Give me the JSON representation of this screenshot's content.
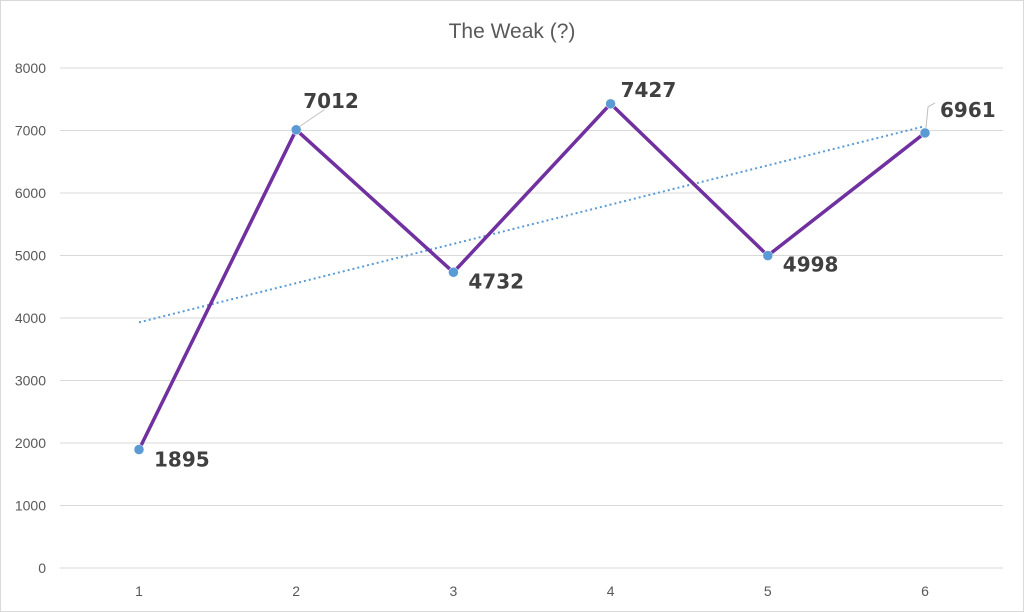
{
  "chart_data": {
    "type": "line",
    "title": "The Weak (?)",
    "xlabel": "",
    "ylabel": "",
    "categories": [
      "1",
      "2",
      "3",
      "4",
      "5",
      "6"
    ],
    "ylim": [
      0,
      8000
    ],
    "y_ticks": [
      "0",
      "1000",
      "2000",
      "3000",
      "4000",
      "5000",
      "6000",
      "7000",
      "8000"
    ],
    "grid": "horizontal",
    "legend": "none",
    "series": [
      {
        "values": [
          1895,
          7012,
          4732,
          7427,
          4998,
          6961
        ],
        "data_labels": [
          "1895",
          "7012",
          "4732",
          "7427",
          "4998",
          "6961"
        ]
      }
    ],
    "trendline": {
      "type": "linear",
      "start": 3930,
      "end": 7070
    },
    "colors": {
      "line": "#7030a0",
      "marker": "#5b9bd5",
      "trendline": "#5b9bd5",
      "grid": "#d9d9d9",
      "text": "#595959",
      "label": "#404040"
    }
  }
}
